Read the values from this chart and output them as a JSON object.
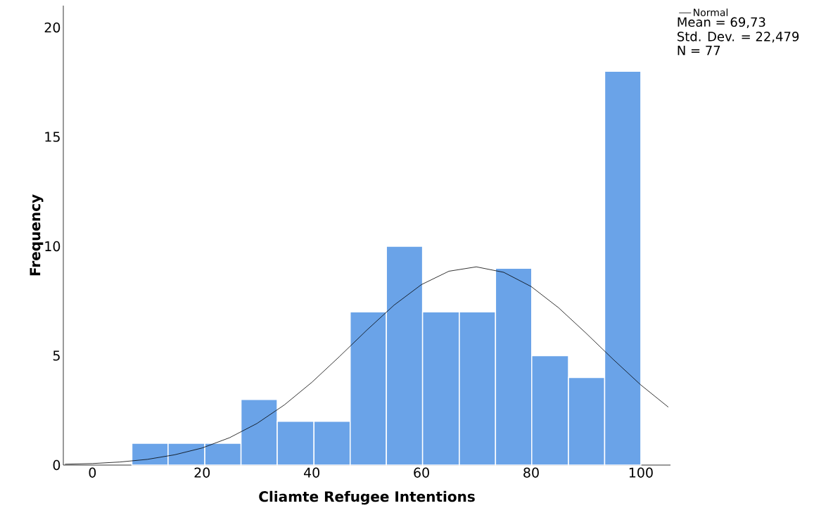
{
  "chart_data": {
    "type": "histogram",
    "xlabel": "Cliamte Refugee Intentions",
    "ylabel": "Frequency",
    "bins": [
      7.2,
      13.8,
      20.5,
      27.1,
      33.7,
      40.4,
      47.0,
      53.6,
      60.2,
      66.9,
      73.5,
      80.1,
      86.8,
      93.4,
      100
    ],
    "values": [
      1,
      1,
      1,
      3,
      2,
      2,
      7,
      10,
      7,
      7,
      9,
      5,
      4,
      18
    ],
    "color": "#6aa3e8",
    "series": [
      {
        "type": "line",
        "name": "Normal",
        "color": "#000000",
        "x": [
          -5,
          0,
          5,
          10,
          15,
          20,
          25,
          30,
          35,
          40,
          45,
          50,
          55,
          60,
          65,
          70,
          75,
          80,
          85,
          90,
          95,
          100,
          105
        ],
        "values": [
          0.04,
          0.07,
          0.14,
          0.26,
          0.47,
          0.78,
          1.25,
          1.9,
          2.75,
          3.78,
          4.95,
          6.16,
          7.31,
          8.25,
          8.86,
          9.06,
          8.81,
          8.16,
          7.19,
          6.03,
          4.82,
          3.66,
          2.65
        ]
      }
    ],
    "annotations": [
      "Mean = 69,73",
      "Std. Dev. = 22,479",
      "N = 77"
    ],
    "xlim": [
      -5.3,
      105.4
    ],
    "ylim": [
      0,
      21
    ],
    "xticks": [
      0,
      20,
      40,
      60,
      80,
      100
    ],
    "yticks": [
      0,
      5,
      10,
      15,
      20
    ],
    "legend": "top right"
  }
}
